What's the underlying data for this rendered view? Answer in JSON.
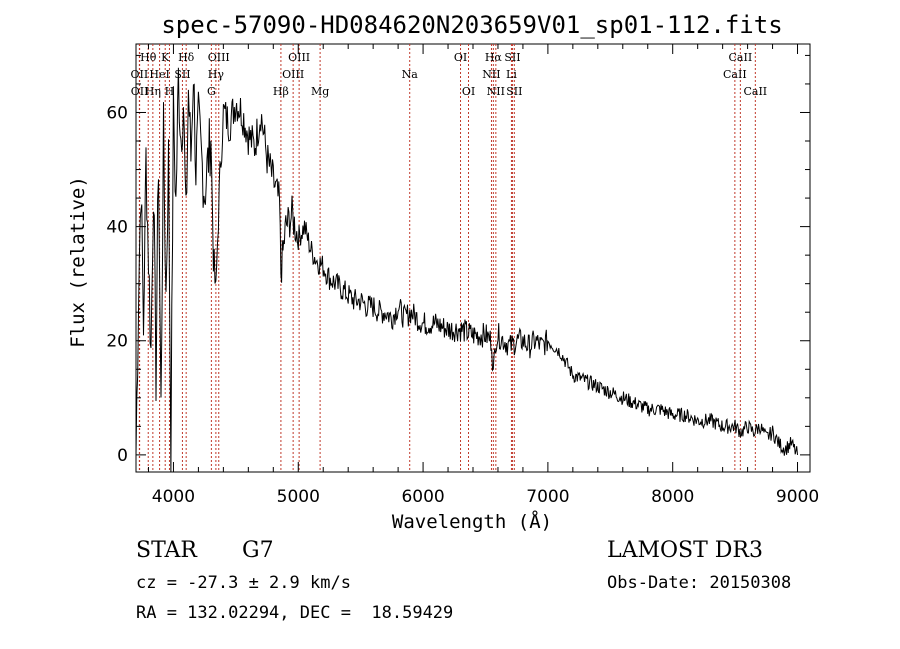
{
  "chart_data": {
    "type": "line",
    "title": "spec-57090-HD084620N203659V01_sp01-112.fits",
    "xlabel": "Wavelength (Å)",
    "ylabel": "Flux (relative)",
    "xlim": [
      3700,
      9100
    ],
    "ylim": [
      -3,
      72
    ],
    "xticks": [
      4000,
      5000,
      6000,
      7000,
      8000,
      9000
    ],
    "yticks": [
      0,
      20,
      40,
      60
    ],
    "series": [
      {
        "name": "flux",
        "x": [
          3700,
          3720,
          3740,
          3760,
          3780,
          3800,
          3820,
          3840,
          3860,
          3880,
          3900,
          3920,
          3940,
          3960,
          3980,
          4000,
          4020,
          4040,
          4060,
          4080,
          4100,
          4120,
          4140,
          4160,
          4180,
          4200,
          4250,
          4300,
          4320,
          4340,
          4360,
          4380,
          4400,
          4450,
          4500,
          4550,
          4600,
          4650,
          4700,
          4750,
          4800,
          4850,
          4861,
          4900,
          4950,
          5000,
          5050,
          5100,
          5150,
          5200,
          5250,
          5300,
          5350,
          5400,
          5450,
          5500,
          5550,
          5600,
          5650,
          5700,
          5750,
          5800,
          5850,
          5900,
          5950,
          6000,
          6100,
          6200,
          6300,
          6400,
          6500,
          6550,
          6563,
          6580,
          6600,
          6650,
          6700,
          6750,
          6800,
          6850,
          6900,
          6950,
          7000,
          7050,
          7100,
          7150,
          7200,
          7300,
          7400,
          7500,
          7600,
          7700,
          7800,
          7900,
          8000,
          8100,
          8200,
          8300,
          8400,
          8500,
          8550,
          8600,
          8650,
          8700,
          8750,
          8800,
          8850,
          8900,
          8950,
          9000
        ],
        "y": [
          0,
          28,
          48,
          22,
          52,
          35,
          18,
          48,
          14,
          52,
          8,
          56,
          28,
          52,
          2,
          60,
          44,
          66,
          56,
          62,
          40,
          64,
          52,
          68,
          50,
          58,
          46,
          56,
          35,
          28,
          42,
          52,
          60,
          58,
          62,
          60,
          56,
          54,
          60,
          52,
          48,
          44,
          32,
          40,
          42,
          38,
          40,
          36,
          34,
          33,
          31,
          30,
          29,
          28,
          27,
          27,
          26,
          26,
          25,
          25,
          24,
          26,
          24,
          25,
          24,
          23,
          23,
          22,
          22,
          21,
          21,
          20,
          14,
          20,
          21,
          20,
          19,
          20,
          20,
          19,
          20,
          19,
          20,
          19,
          18,
          16,
          14,
          13,
          12,
          11,
          10,
          9,
          8,
          8,
          7,
          7,
          6,
          6,
          5,
          5,
          4,
          5,
          4,
          5,
          3,
          4,
          2,
          1,
          2,
          0
        ]
      }
    ],
    "lines": [
      {
        "label": "Hθ",
        "x": 3798,
        "row": 1
      },
      {
        "label": "OII",
        "x": 3727,
        "row": 2
      },
      {
        "label": "OII",
        "x": 3729,
        "row": 3
      },
      {
        "label": "Hη",
        "x": 3835,
        "row": 3
      },
      {
        "label": "HeI",
        "x": 3889,
        "row": 2
      },
      {
        "label": "K",
        "x": 3934,
        "row": 1
      },
      {
        "label": "H",
        "x": 3968,
        "row": 3
      },
      {
        "label": "SII",
        "x": 4072,
        "row": 2
      },
      {
        "label": "Hδ",
        "x": 4102,
        "row": 1
      },
      {
        "label": "OIII",
        "x": 4363,
        "row": 1
      },
      {
        "label": "Hγ",
        "x": 4340,
        "row": 2
      },
      {
        "label": "G",
        "x": 4304,
        "row": 3
      },
      {
        "label": "Hβ",
        "x": 4861,
        "row": 3
      },
      {
        "label": "OIII",
        "x": 4959,
        "row": 2
      },
      {
        "label": "OIII",
        "x": 5007,
        "row": 1
      },
      {
        "label": "Mg",
        "x": 5175,
        "row": 3
      },
      {
        "label": "Na",
        "x": 5893,
        "row": 2
      },
      {
        "label": "OI",
        "x": 6300,
        "row": 1
      },
      {
        "label": "OI",
        "x": 6364,
        "row": 3
      },
      {
        "label": "Hα",
        "x": 6563,
        "row": 1
      },
      {
        "label": "NII",
        "x": 6548,
        "row": 2
      },
      {
        "label": "NII",
        "x": 6583,
        "row": 3
      },
      {
        "label": "Li",
        "x": 6708,
        "row": 2
      },
      {
        "label": "SII",
        "x": 6716,
        "row": 1
      },
      {
        "label": "SII",
        "x": 6731,
        "row": 3
      },
      {
        "label": "CaII",
        "x": 8498,
        "row": 2
      },
      {
        "label": "CaII",
        "x": 8542,
        "row": 1
      },
      {
        "label": "CaII",
        "x": 8662,
        "row": 3
      }
    ]
  },
  "info": {
    "object_class": "STAR",
    "subclass": "G7",
    "survey": "LAMOST DR3",
    "redshift": "cz = -27.3 ± 2.9 km/s",
    "obs_date": "Obs-Date: 20150308",
    "coords": "RA = 132.02294, DEC =  18.59429"
  },
  "colors": {
    "line_marker": "#c0392b",
    "axis": "#000000",
    "spectrum": "#000000"
  }
}
